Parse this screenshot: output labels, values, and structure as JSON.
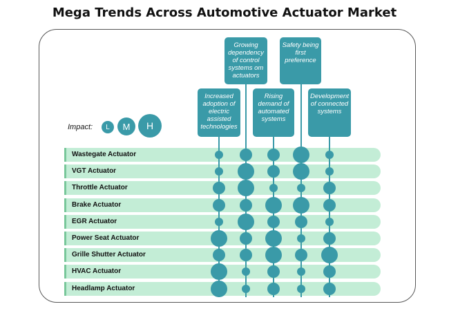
{
  "title": "Mega Trends Across Automotive Actuator Market",
  "impact_legend": {
    "label": "Impact:",
    "levels": [
      {
        "code": "L",
        "meaning": "Low"
      },
      {
        "code": "M",
        "meaning": "Medium"
      },
      {
        "code": "H",
        "meaning": "High"
      }
    ]
  },
  "trends": [
    "Increased adoption of electric assisted technologies",
    "Growing dependency of control systems om actuators",
    "Rising demand of automated systems",
    "Safety being first preference",
    "Development of connected systems"
  ],
  "rows": [
    {
      "label": "Wastegate Actuator",
      "impact": [
        "L",
        "M",
        "M",
        "H",
        "L"
      ]
    },
    {
      "label": "VGT Actuator",
      "impact": [
        "L",
        "H",
        "M",
        "H",
        "L"
      ]
    },
    {
      "label": "Throttle Actuator",
      "impact": [
        "M",
        "H",
        "L",
        "L",
        "M"
      ]
    },
    {
      "label": "Brake Actuator",
      "impact": [
        "M",
        "M",
        "H",
        "H",
        "M"
      ]
    },
    {
      "label": "EGR Actuator",
      "impact": [
        "L",
        "H",
        "M",
        "M",
        "L"
      ]
    },
    {
      "label": "Power Seat Actuator",
      "impact": [
        "H",
        "M",
        "H",
        "L",
        "M"
      ]
    },
    {
      "label": "Grille Shutter Actuator",
      "impact": [
        "M",
        "M",
        "H",
        "M",
        "H"
      ]
    },
    {
      "label": "HVAC Actuator",
      "impact": [
        "H",
        "L",
        "M",
        "L",
        "M"
      ]
    },
    {
      "label": "Headlamp Actuator",
      "impact": [
        "H",
        "L",
        "M",
        "L",
        "M"
      ]
    }
  ],
  "colors": {
    "accent": "#3a9aa8",
    "row_band": "#c3edd6"
  }
}
